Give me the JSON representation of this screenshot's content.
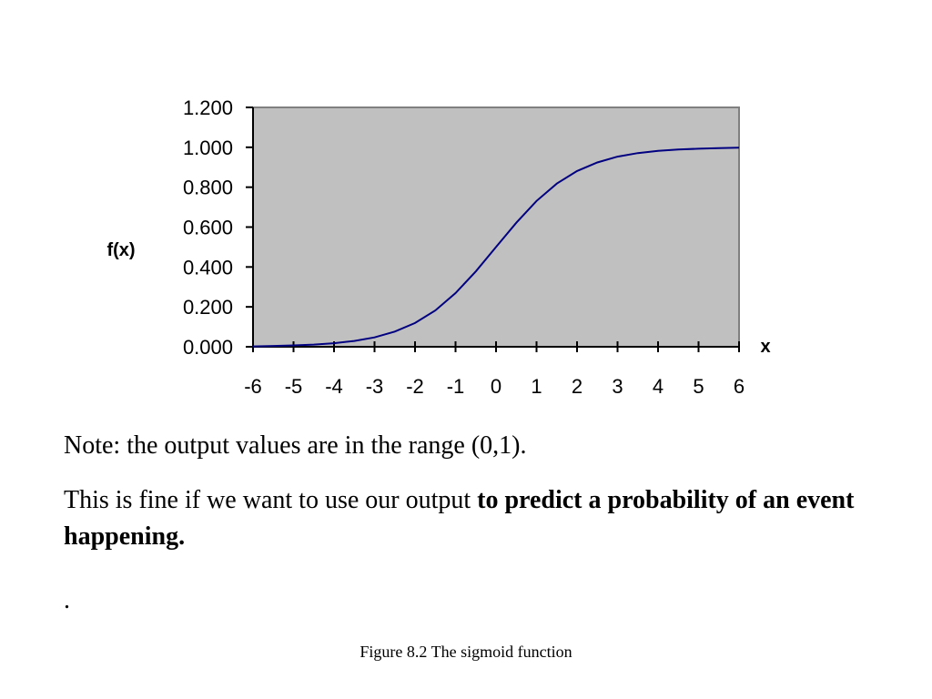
{
  "slide": {
    "note": "Note: the output values are in the range (0,1).",
    "body_prefix": "This is fine if we want to use our output ",
    "body_bold": "to predict a probability of an event happening.",
    "trailing_dot": ".",
    "caption": "Figure 8.2 The sigmoid function"
  },
  "chart_data": {
    "type": "line",
    "title": "",
    "xlabel": "x",
    "ylabel": "f(x)",
    "xlim": [
      -6,
      6
    ],
    "ylim": [
      0,
      1.2
    ],
    "x_ticks": [
      "-6",
      "-5",
      "-4",
      "-3",
      "-2",
      "-1",
      "0",
      "1",
      "2",
      "3",
      "4",
      "5",
      "6"
    ],
    "y_ticks": [
      "0.000",
      "0.200",
      "0.400",
      "0.600",
      "0.800",
      "1.000",
      "1.200"
    ],
    "grid": false,
    "legend": "none",
    "plot_background": "#c0c0c0",
    "line_color": "#000080",
    "series": [
      {
        "x": [
          -6,
          -5.5,
          -5,
          -4.5,
          -4,
          -3.5,
          -3,
          -2.5,
          -2,
          -1.5,
          -1,
          -0.5,
          0,
          0.5,
          1,
          1.5,
          2,
          2.5,
          3,
          3.5,
          4,
          4.5,
          5,
          5.5,
          6
        ],
        "values": [
          0.002,
          0.004,
          0.007,
          0.011,
          0.018,
          0.029,
          0.047,
          0.076,
          0.119,
          0.182,
          0.269,
          0.378,
          0.5,
          0.622,
          0.731,
          0.818,
          0.881,
          0.924,
          0.953,
          0.971,
          0.982,
          0.989,
          0.993,
          0.996,
          0.998
        ]
      }
    ]
  }
}
